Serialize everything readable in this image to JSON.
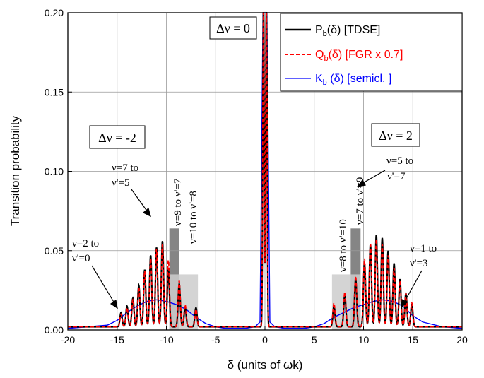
{
  "chart_data": {
    "type": "line",
    "title": "",
    "xlabel": "δ (units of ωk)",
    "ylabel": "Transition probability",
    "xlim": [
      -20,
      20
    ],
    "ylim": [
      0,
      0.2
    ],
    "x_ticks": [
      -20,
      -15,
      -10,
      -5,
      0,
      5,
      10,
      15,
      20
    ],
    "y_ticks": [
      0.0,
      0.05,
      0.1,
      0.15,
      0.2
    ],
    "x_tick_labels": [
      "-20",
      "-15",
      "-10",
      "-5",
      "0",
      "5",
      "10",
      "15",
      "20"
    ],
    "y_tick_labels": [
      "0.00",
      "0.05",
      "0.10",
      "0.15",
      "0.20"
    ],
    "grid": true,
    "legend_position": "top-right",
    "legend": [
      {
        "symbol": "P",
        "sub": "b",
        "arg": "(δ)",
        "tag": "[TDSE]",
        "color": "#000000",
        "style": "solid"
      },
      {
        "symbol": "Q",
        "sub": "b",
        "arg": "(δ)",
        "tag": "[FGR  x 0.7]",
        "color": "#ff0000",
        "style": "dashed"
      },
      {
        "symbol": "K",
        "sub": "b",
        "arg": " (δ)",
        "tag": "[semicl. ]",
        "color": "#0000ff",
        "style": "solid"
      }
    ],
    "series": [
      {
        "name": "Pb(δ) [TDSE]",
        "color": "#000000",
        "baseline": 0.002,
        "peaks": [
          {
            "x": -14.6,
            "y": 0.009
          },
          {
            "x": -14.0,
            "y": 0.013
          },
          {
            "x": -13.4,
            "y": 0.018
          },
          {
            "x": -12.8,
            "y": 0.026
          },
          {
            "x": -12.2,
            "y": 0.036
          },
          {
            "x": -11.6,
            "y": 0.045
          },
          {
            "x": -11.0,
            "y": 0.05
          },
          {
            "x": -10.4,
            "y": 0.054
          },
          {
            "x": -9.8,
            "y": 0.036
          },
          {
            "x": -8.7,
            "y": 0.027
          },
          {
            "x": -8.1,
            "y": 0.012
          },
          {
            "x": -7.0,
            "y": 0.012
          },
          {
            "x": -0.15,
            "y": 0.2
          },
          {
            "x": 0.15,
            "y": 0.2
          },
          {
            "x": 7.0,
            "y": 0.013
          },
          {
            "x": 8.1,
            "y": 0.02
          },
          {
            "x": 9.2,
            "y": 0.03
          },
          {
            "x": 10.1,
            "y": 0.04
          },
          {
            "x": 10.7,
            "y": 0.052
          },
          {
            "x": 11.3,
            "y": 0.058
          },
          {
            "x": 11.9,
            "y": 0.056
          },
          {
            "x": 12.5,
            "y": 0.048
          },
          {
            "x": 13.1,
            "y": 0.04
          },
          {
            "x": 13.7,
            "y": 0.03
          },
          {
            "x": 14.3,
            "y": 0.021
          },
          {
            "x": 14.9,
            "y": 0.014
          }
        ]
      },
      {
        "name": "Qb(δ) [FGR x 0.7]",
        "color": "#ff0000",
        "baseline": 0.002,
        "peaks": [
          {
            "x": -14.6,
            "y": 0.008
          },
          {
            "x": -14.0,
            "y": 0.012
          },
          {
            "x": -13.4,
            "y": 0.017
          },
          {
            "x": -12.8,
            "y": 0.025
          },
          {
            "x": -12.2,
            "y": 0.035
          },
          {
            "x": -11.6,
            "y": 0.043
          },
          {
            "x": -11.0,
            "y": 0.049
          },
          {
            "x": -10.4,
            "y": 0.052
          },
          {
            "x": -9.8,
            "y": 0.042
          },
          {
            "x": -8.7,
            "y": 0.029
          },
          {
            "x": -8.1,
            "y": 0.014
          },
          {
            "x": -7.0,
            "y": 0.011
          },
          {
            "x": -0.15,
            "y": 0.2
          },
          {
            "x": 0.15,
            "y": 0.2
          },
          {
            "x": 7.0,
            "y": 0.015
          },
          {
            "x": 8.1,
            "y": 0.022
          },
          {
            "x": 9.2,
            "y": 0.032
          },
          {
            "x": 10.1,
            "y": 0.043
          },
          {
            "x": 10.7,
            "y": 0.053
          },
          {
            "x": 11.3,
            "y": 0.055
          },
          {
            "x": 11.9,
            "y": 0.052
          },
          {
            "x": 12.5,
            "y": 0.045
          },
          {
            "x": 13.1,
            "y": 0.037
          },
          {
            "x": 13.7,
            "y": 0.029
          },
          {
            "x": 14.3,
            "y": 0.021
          },
          {
            "x": 14.9,
            "y": 0.015
          }
        ]
      },
      {
        "name": "Kb(δ) [semicl.]",
        "color": "#0000ff",
        "x": [
          -20,
          -18,
          -16,
          -15,
          -14,
          -13,
          -12,
          -11,
          -10,
          -9,
          -8,
          -7,
          -6,
          -5,
          -4,
          -3,
          -2,
          -1,
          -0.5,
          -0.2,
          0,
          0.2,
          0.5,
          1,
          2,
          3,
          4,
          5,
          6,
          7,
          8,
          9,
          10,
          11,
          12,
          13,
          14,
          15,
          16,
          18,
          20
        ],
        "y": [
          0.001,
          0.002,
          0.003,
          0.006,
          0.011,
          0.015,
          0.018,
          0.019,
          0.018,
          0.016,
          0.013,
          0.008,
          0.004,
          0.002,
          0.001,
          0.001,
          0.001,
          0.002,
          0.005,
          0.2,
          0.2,
          0.2,
          0.005,
          0.002,
          0.001,
          0.001,
          0.001,
          0.002,
          0.004,
          0.008,
          0.011,
          0.014,
          0.016,
          0.018,
          0.019,
          0.018,
          0.015,
          0.009,
          0.005,
          0.002,
          0.001
        ]
      }
    ],
    "shaded_regions": [
      {
        "x0": -9.7,
        "x1": -8.7,
        "y": 0.064,
        "fill": "#707070"
      },
      {
        "x0": -9.7,
        "x1": -6.8,
        "y": 0.035,
        "fill": "#cccccc"
      },
      {
        "x0": 8.7,
        "x1": 9.7,
        "y": 0.064,
        "fill": "#707070"
      },
      {
        "x0": 6.8,
        "x1": 9.7,
        "y": 0.035,
        "fill": "#cccccc"
      }
    ],
    "annotations": {
      "dv0": "Δν = 0",
      "dv_minus2": "Δν = -2",
      "dv_plus2": "Δν = 2",
      "left_v7_line1": "ν=7 to",
      "left_v7_line2": "ν'=5",
      "left_v2_line1": "ν=2 to",
      "left_v2_line2": "ν'=0",
      "left_v9": "ν=9 to ν'=7",
      "left_v10": "ν=10 to ν'=8",
      "right_v5_line1": "ν=5 to",
      "right_v5_line2": "ν'=7",
      "right_v1_line1": "ν=1 to",
      "right_v1_line2": "ν'=3",
      "right_v8": "ν=8 to ν'=10",
      "right_v7": "ν=7 to ν'=9"
    }
  }
}
